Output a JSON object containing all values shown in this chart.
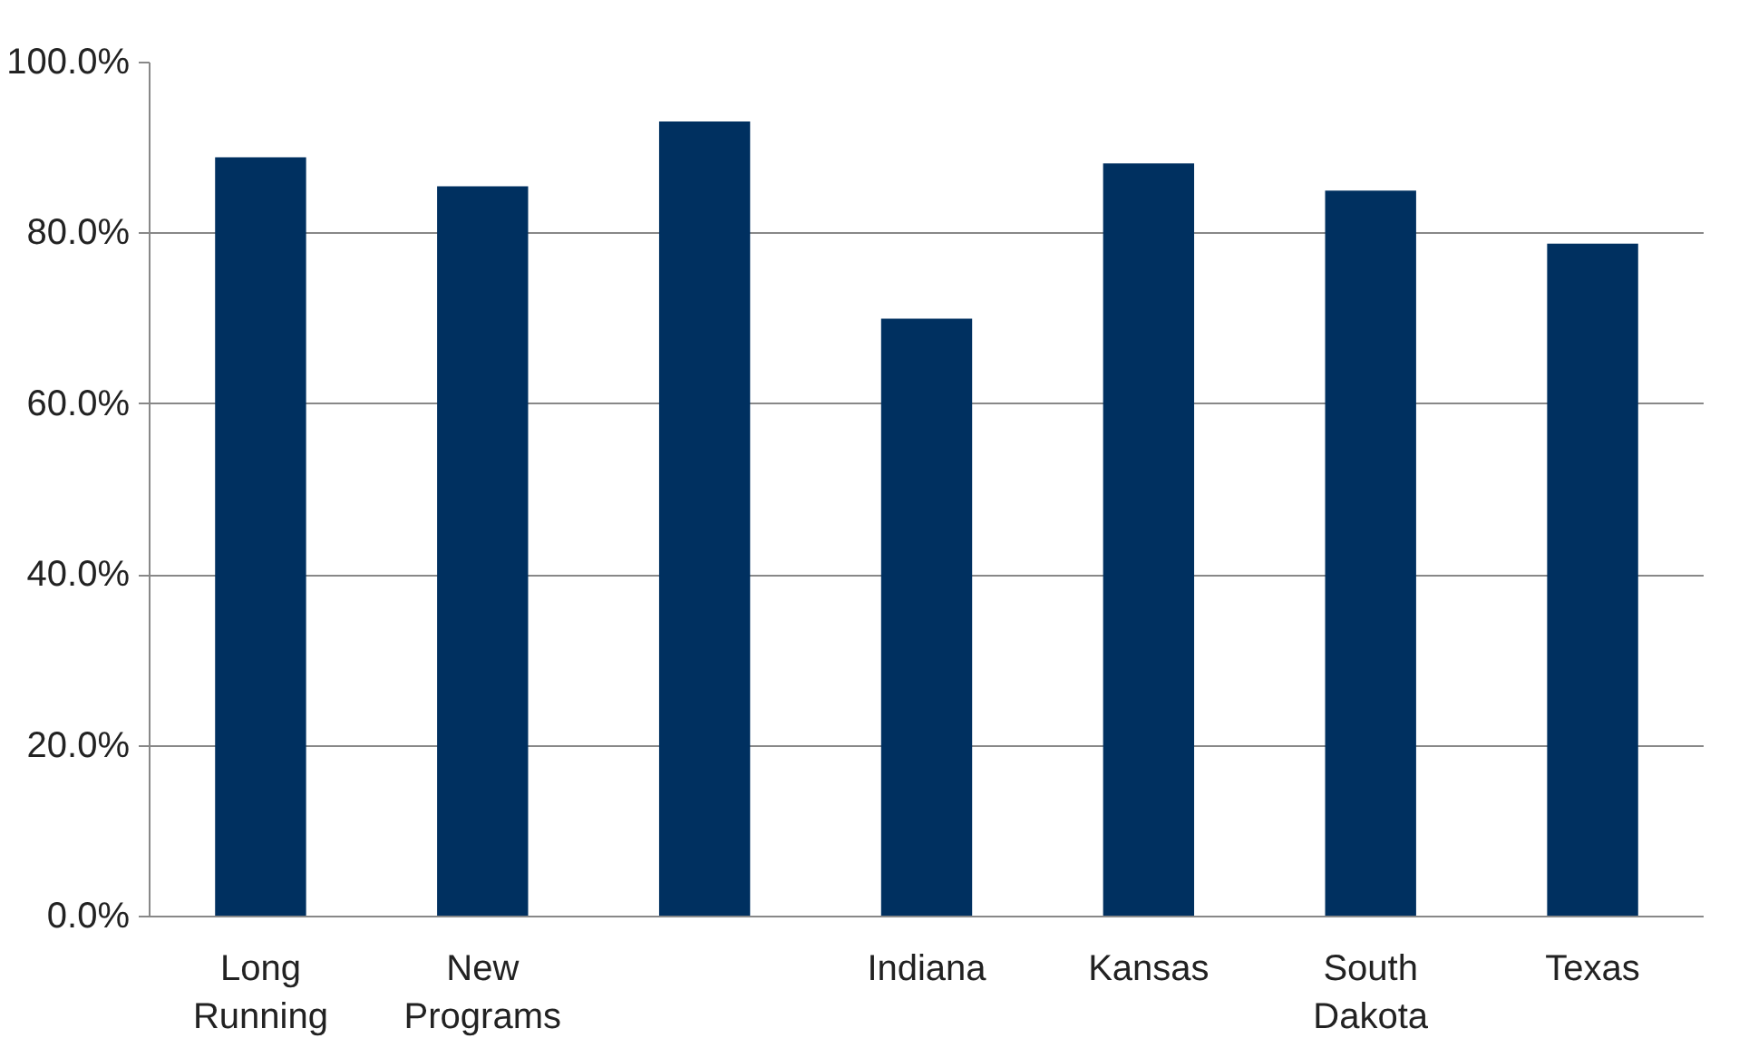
{
  "chart_data": {
    "type": "bar",
    "categories": [
      "Long Running",
      "New Programs",
      null,
      "Indiana",
      "Kansas",
      "South Dakota",
      "Texas"
    ],
    "values": [
      88.9,
      85.5,
      93.1,
      70.0,
      88.2,
      85.0,
      78.8
    ],
    "color": "#003060",
    "ylim": [
      0,
      100
    ],
    "yticks": [
      {
        "value": 0,
        "label": "0.0%"
      },
      {
        "value": 20,
        "label": "20.0%"
      },
      {
        "value": 40,
        "label": "40.0%"
      },
      {
        "value": 60,
        "label": "60.0%"
      },
      {
        "value": 80,
        "label": "80.0%"
      },
      {
        "value": 100,
        "label": "100.0%"
      }
    ],
    "grid": "y"
  }
}
